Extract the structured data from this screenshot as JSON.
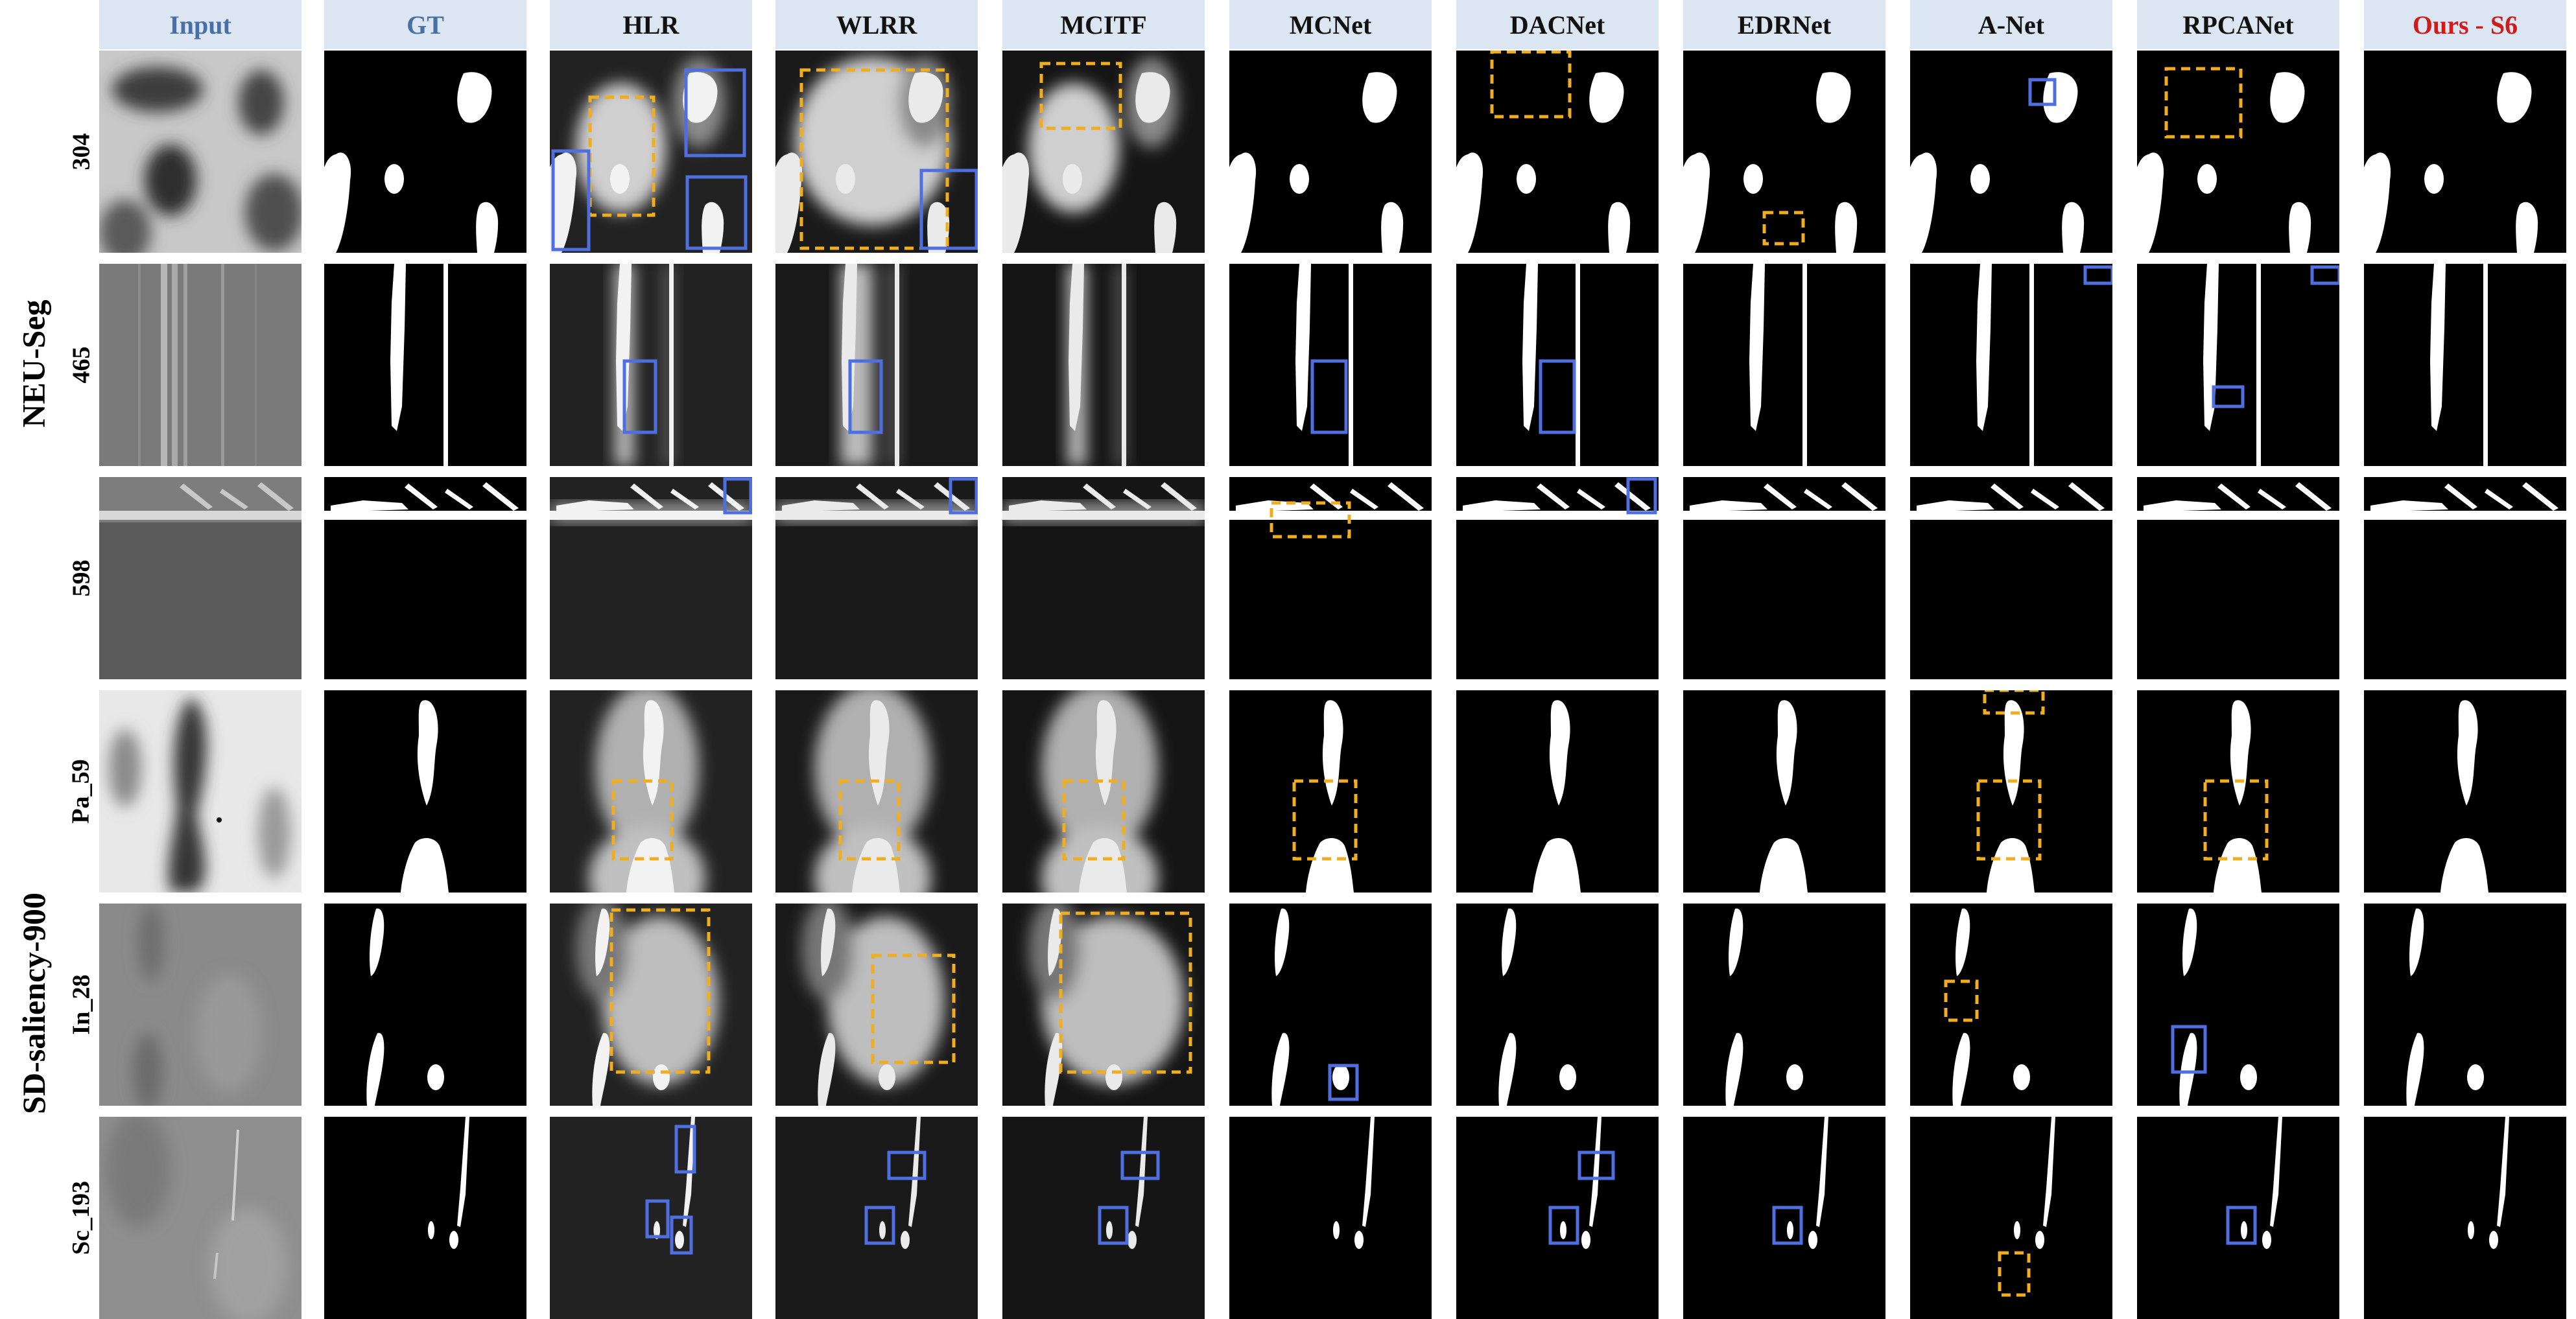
{
  "columns": [
    {
      "key": "input",
      "label": "Input",
      "style": "blue"
    },
    {
      "key": "gt",
      "label": "GT",
      "style": "blue"
    },
    {
      "key": "hlr",
      "label": "HLR",
      "style": "normal"
    },
    {
      "key": "wlrr",
      "label": "WLRR",
      "style": "normal"
    },
    {
      "key": "mcitf",
      "label": "MCITF",
      "style": "normal"
    },
    {
      "key": "mcnet",
      "label": "MCNet",
      "style": "normal"
    },
    {
      "key": "dacnet",
      "label": "DACNet",
      "style": "normal"
    },
    {
      "key": "edrnet",
      "label": "EDRNet",
      "style": "normal"
    },
    {
      "key": "anet",
      "label": "A-Net",
      "style": "normal"
    },
    {
      "key": "rpcanet",
      "label": "RPCANet",
      "style": "normal"
    },
    {
      "key": "ours",
      "label": "Ours - S6",
      "style": "red"
    }
  ],
  "groups": [
    {
      "label": "NEU-Seg",
      "rows": [
        0,
        1,
        2
      ]
    },
    {
      "label": "SD-saliency-900",
      "rows": [
        3,
        4,
        5
      ]
    }
  ],
  "rows": [
    {
      "label": "304"
    },
    {
      "label": "465"
    },
    {
      "label": "598"
    },
    {
      "label": "Pa_59"
    },
    {
      "label": "In_28"
    },
    {
      "label": "Sc_193"
    }
  ],
  "colors": {
    "header_bg": "#dbe6f2",
    "header_blue_text": "#4a6fa6",
    "header_red_text": "#d11a1a",
    "box_blue": "#4f6fe0",
    "box_orange": "#f0ad1e"
  }
}
